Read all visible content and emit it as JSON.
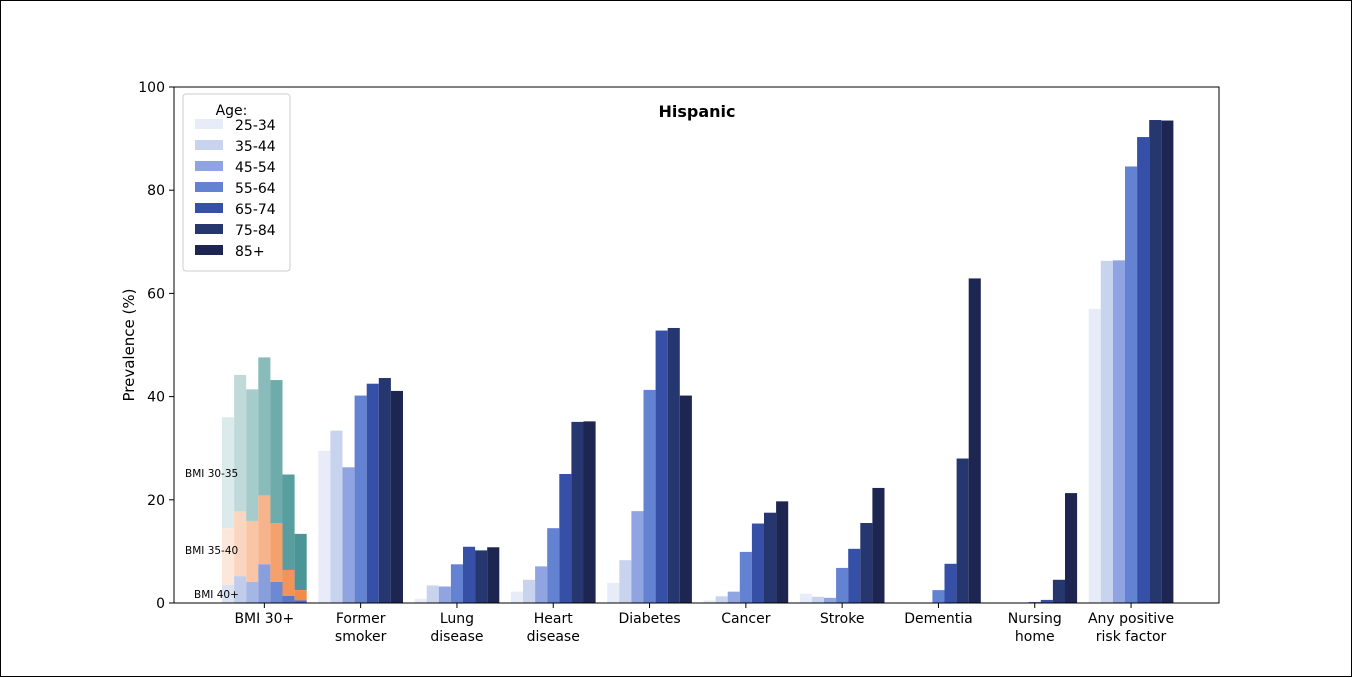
{
  "chart_data": {
    "type": "bar",
    "title": "Hispanic",
    "xlabel": "",
    "ylabel": "Prevalence (%)",
    "ylim": [
      0,
      100
    ],
    "yticks": [
      0,
      20,
      40,
      60,
      80,
      100
    ],
    "legend": {
      "title": "Age:",
      "placement": "top-left",
      "entries": [
        "25-34",
        "35-44",
        "45-54",
        "55-64",
        "65-74",
        "75-84",
        "85+"
      ]
    },
    "categories": [
      "BMI 30+",
      "Former\nsmoker",
      "Lung\ndisease",
      "Heart\ndisease",
      "Diabetes",
      "Cancer",
      "Stroke",
      "Dementia",
      "Nursing\nhome",
      "Any positive\nrisk factor"
    ],
    "series": [
      {
        "name": "25-34",
        "values": [
          36.0,
          29.5,
          0.8,
          2.2,
          3.9,
          0.5,
          1.8,
          0,
          0,
          57.0
        ]
      },
      {
        "name": "35-44",
        "values": [
          44.2,
          33.4,
          3.4,
          4.5,
          8.3,
          1.3,
          1.2,
          0,
          0,
          66.3
        ]
      },
      {
        "name": "45-54",
        "values": [
          41.4,
          26.3,
          3.2,
          7.1,
          17.8,
          2.2,
          1.0,
          0,
          0,
          66.4
        ]
      },
      {
        "name": "55-64",
        "values": [
          47.6,
          40.2,
          7.5,
          14.5,
          41.3,
          9.9,
          6.8,
          2.5,
          0.2,
          84.6
        ]
      },
      {
        "name": "65-74",
        "values": [
          43.2,
          42.5,
          10.9,
          25.0,
          52.8,
          15.4,
          10.5,
          7.6,
          0.6,
          90.3
        ]
      },
      {
        "name": "75-84",
        "values": [
          24.9,
          43.6,
          10.2,
          35.1,
          53.3,
          17.5,
          15.5,
          28.0,
          4.5,
          93.6
        ]
      },
      {
        "name": "85+",
        "values": [
          13.4,
          41.1,
          10.8,
          35.2,
          40.2,
          19.7,
          22.3,
          62.9,
          21.3,
          93.5
        ]
      }
    ],
    "bmi_subcategories": [
      {
        "name": "BMI 30-35",
        "color": "#4a9696"
      },
      {
        "name": "BMI 35-40",
        "color": "#f28a4a"
      },
      {
        "name": "BMI 40+",
        "color": "#4a6cc8"
      }
    ],
    "bmi_35_plus_values": [
      14.5,
      17.7,
      15.9,
      20.8,
      15.5,
      6.4,
      2.5
    ],
    "bmi_40_plus_values": [
      3.5,
      5.2,
      4.1,
      7.5,
      4.1,
      1.4,
      0.5
    ],
    "series_colors": [
      "#e8ecf8",
      "#c8d3ee",
      "#8fa4e0",
      "#6482d2",
      "#3650a8",
      "#26366e",
      "#1c2650"
    ],
    "grid": false
  }
}
